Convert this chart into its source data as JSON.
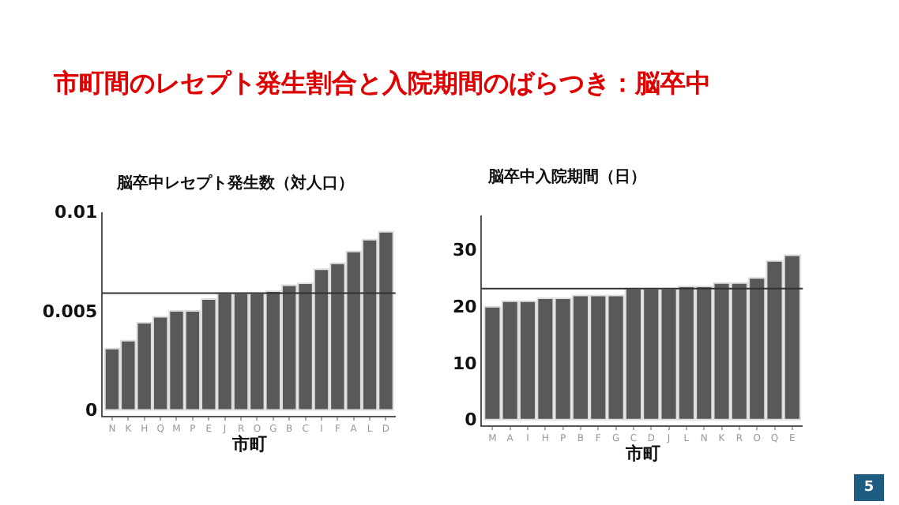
{
  "chart_data": [
    {
      "type": "other",
      "title": "市町間のレセプト発生割合と入院期間のばらつき：脳卒中",
      "annotations": [
        "5"
      ]
    },
    {
      "type": "bar",
      "title": "脳卒中レセプト発生数（対人口）",
      "xlabel": "市町",
      "categories": [
        "N",
        "K",
        "H",
        "Q",
        "M",
        "P",
        "E",
        "J",
        "R",
        "O",
        "G",
        "B",
        "C",
        "I",
        "F",
        "A",
        "L",
        "D"
      ],
      "values": [
        0.0031,
        0.0035,
        0.0044,
        0.0047,
        0.005,
        0.005,
        0.0056,
        0.0059,
        0.0059,
        0.0059,
        0.006,
        0.0063,
        0.0064,
        0.0071,
        0.0074,
        0.008,
        0.0086,
        0.009
      ],
      "color": "#595959",
      "ylim": [
        -0.0003,
        0.01
      ],
      "yticks": [
        0,
        0.005,
        0.01
      ],
      "ref_lines": [
        {
          "axis": "y",
          "value": 0.0059,
          "color": "#333333"
        }
      ]
    },
    {
      "type": "bar",
      "title": "脳卒中入院期間（日）",
      "xlabel": "市町",
      "categories": [
        "M",
        "A",
        "I",
        "H",
        "P",
        "B",
        "F",
        "G",
        "C",
        "D",
        "J",
        "L",
        "N",
        "K",
        "R",
        "O",
        "Q",
        "E"
      ],
      "values": [
        19.9,
        20.9,
        20.9,
        21.4,
        21.4,
        21.9,
        21.9,
        21.9,
        23.1,
        23.1,
        23.1,
        23.5,
        23.5,
        24.1,
        24.1,
        25,
        28,
        29
      ],
      "color": "#595959",
      "ylim": [
        -1,
        36
      ],
      "yticks": [
        0,
        10,
        20,
        30
      ],
      "ref_lines": [
        {
          "axis": "y",
          "value": 23.1,
          "color": "#333333"
        }
      ]
    }
  ]
}
